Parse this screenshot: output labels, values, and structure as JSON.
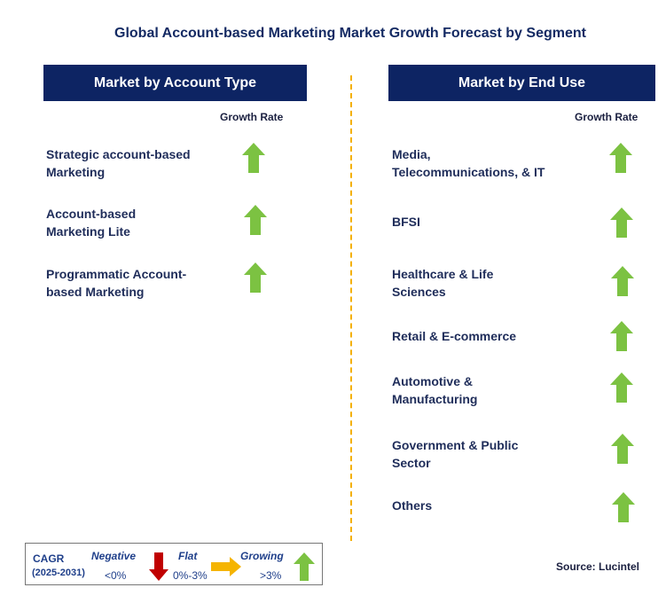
{
  "title": "Global Account-based Marketing Market Growth Forecast by Segment",
  "left_panel": {
    "header": "Market by Account Type",
    "growth_label": "Growth Rate",
    "items": [
      {
        "label_lines": [
          "Strategic account-based",
          "Marketing"
        ],
        "trend": "growing"
      },
      {
        "label_lines": [
          "Account-based",
          "Marketing Lite"
        ],
        "trend": "growing"
      },
      {
        "label_lines": [
          "Programmatic Account-",
          "based Marketing"
        ],
        "trend": "growing"
      }
    ]
  },
  "right_panel": {
    "header": "Market by End Use",
    "growth_label": "Growth Rate",
    "items": [
      {
        "label_lines": [
          "Media,",
          "Telecommunications, & IT"
        ],
        "trend": "growing"
      },
      {
        "label_lines": [
          "BFSI"
        ],
        "trend": "growing"
      },
      {
        "label_lines": [
          "Healthcare & Life",
          "Sciences"
        ],
        "trend": "growing"
      },
      {
        "label_lines": [
          "Retail & E-commerce"
        ],
        "trend": "growing"
      },
      {
        "label_lines": [
          "Automotive &",
          "Manufacturing"
        ],
        "trend": "growing"
      },
      {
        "label_lines": [
          "Government & Public",
          "Sector"
        ],
        "trend": "growing"
      },
      {
        "label_lines": [
          "Others"
        ],
        "trend": "growing"
      }
    ]
  },
  "legend": {
    "cagr_label": "CAGR",
    "period": "(2025-2031)",
    "negative_label": "Negative",
    "negative_range": "<0%",
    "flat_label": "Flat",
    "flat_range": "0%-3%",
    "growing_label": "Growing",
    "growing_range": ">3%"
  },
  "source": "Source: Lucintel",
  "colors": {
    "header_bg": "#0d2463",
    "growing_arrow": "#7cc242",
    "negative_arrow": "#c00000",
    "flat_arrow": "#f5b400",
    "divider": "#f4b000",
    "legend_text": "#1f3f8a"
  }
}
